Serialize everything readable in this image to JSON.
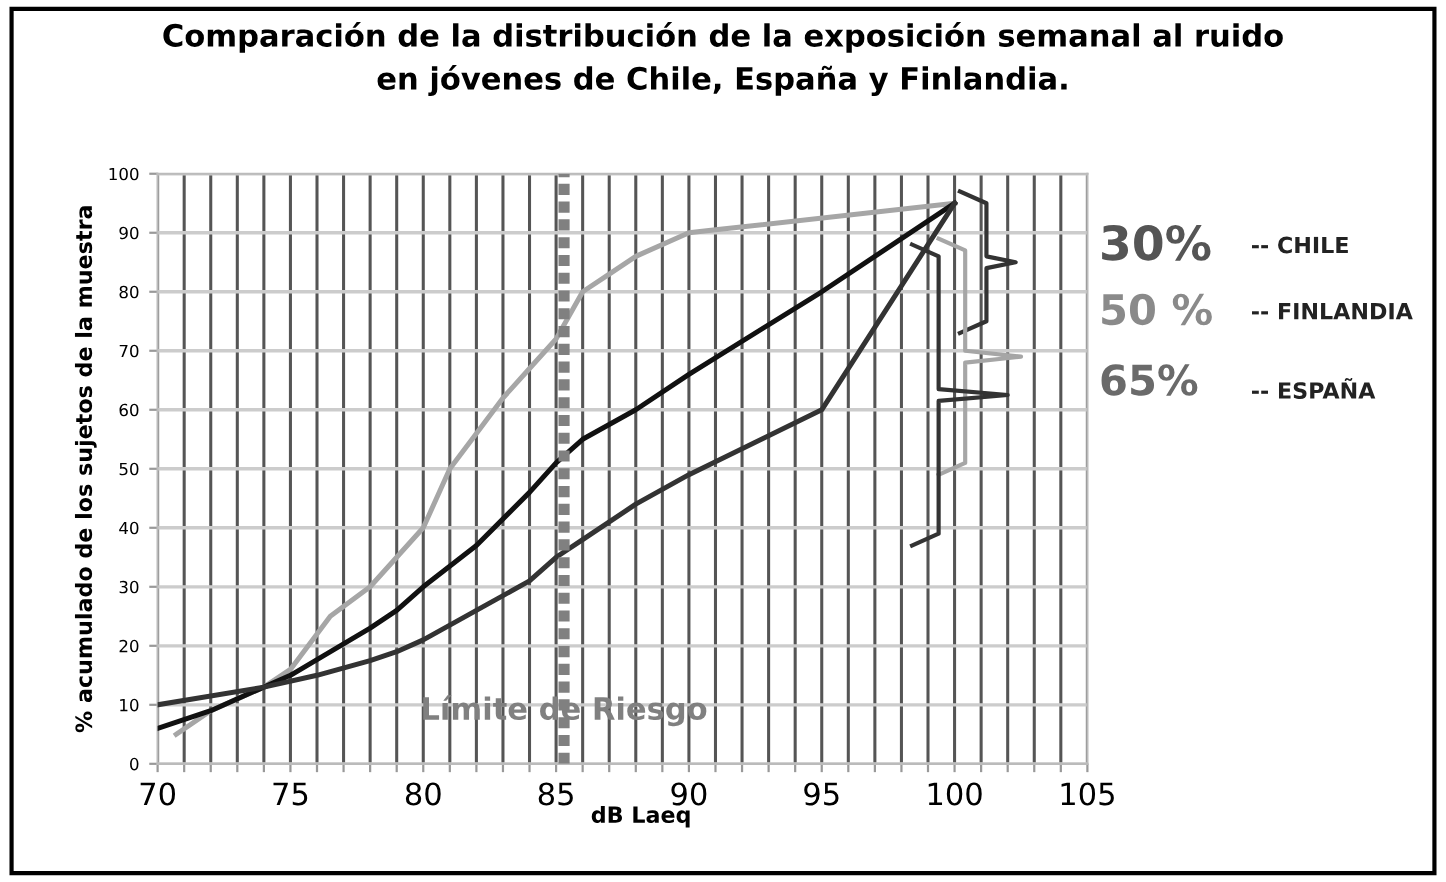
{
  "chart_data": {
    "type": "line",
    "title": "Comparación de la distribución de la exposición semanal al ruido\nen jóvenes de Chile, España y Finlandia.",
    "xlabel": "dB Laeq",
    "ylabel": "% acumulado de los sujetos de la muestra",
    "xlim": [
      70,
      105
    ],
    "ylim": [
      0,
      100
    ],
    "xticks": [
      70,
      {
        "value": 71,
        "label": null
      },
      {
        "value": 72,
        "label": null
      },
      {
        "value": 73,
        "label": null
      },
      {
        "value": 74,
        "label": null
      },
      75,
      {
        "value": 76,
        "label": null
      },
      {
        "value": 77,
        "label": null
      },
      {
        "value": 78,
        "label": null
      },
      {
        "value": 79,
        "label": null
      },
      80,
      {
        "value": 81,
        "label": null
      },
      {
        "value": 82,
        "label": null
      },
      {
        "value": 83,
        "label": null
      },
      {
        "value": 84,
        "label": null
      },
      85,
      {
        "value": 86,
        "label": null
      },
      {
        "value": 87,
        "label": null
      },
      {
        "value": 88,
        "label": null
      },
      {
        "value": 89,
        "label": null
      },
      90,
      {
        "value": 91,
        "label": null
      },
      {
        "value": 92,
        "label": null
      },
      {
        "value": 93,
        "label": null
      },
      {
        "value": 94,
        "label": null
      },
      95,
      {
        "value": 96,
        "label": null
      },
      {
        "value": 97,
        "label": null
      },
      {
        "value": 98,
        "label": null
      },
      {
        "value": 99,
        "label": null
      },
      100,
      {
        "value": 101,
        "label": null
      },
      {
        "value": 102,
        "label": null
      },
      {
        "value": 103,
        "label": null
      },
      {
        "value": 104,
        "label": null
      },
      105
    ],
    "yticks": [
      0,
      10,
      20,
      30,
      40,
      50,
      60,
      70,
      80,
      90,
      100
    ],
    "grid": true,
    "marker": "none",
    "line_style": "solid",
    "series": [
      {
        "color": "#a6a6a6",
        "x": [
          70.7,
          72,
          74,
          75,
          76,
          76.5,
          78,
          79,
          80,
          81,
          82,
          83,
          84,
          85,
          86,
          87,
          88,
          90,
          91,
          100
        ],
        "values": [
          5,
          9,
          13,
          16,
          22,
          25,
          30,
          35,
          40,
          50,
          56,
          62,
          67,
          72,
          80,
          83,
          86,
          90,
          90.5,
          95
        ]
      },
      {
        "color": "#111111",
        "x": [
          70,
          72,
          74,
          75,
          78,
          79,
          80,
          82,
          84,
          85,
          86,
          88,
          90,
          95,
          100
        ],
        "values": [
          6,
          9,
          13,
          15,
          23,
          26,
          30,
          37,
          46,
          51,
          55,
          60,
          66,
          80,
          95
        ]
      },
      {
        "color": "#333333",
        "x": [
          70,
          74,
          76,
          78,
          79,
          80,
          82,
          84,
          85,
          86,
          88,
          90,
          95,
          100
        ],
        "values": [
          10,
          13,
          15,
          17.5,
          19,
          21,
          26,
          31,
          35,
          38,
          44,
          49,
          60,
          95
        ]
      }
    ],
    "ref_lines": [
      {
        "axis": "x",
        "value": 85.3,
        "label": "Límite de Riesgo",
        "color": "#808080",
        "line_style": "dotted"
      }
    ],
    "annotations": [
      "30%",
      "-- CHILE",
      "50 %",
      "-- FINLANDIA",
      "65%",
      "-- ESPAÑA"
    ]
  }
}
